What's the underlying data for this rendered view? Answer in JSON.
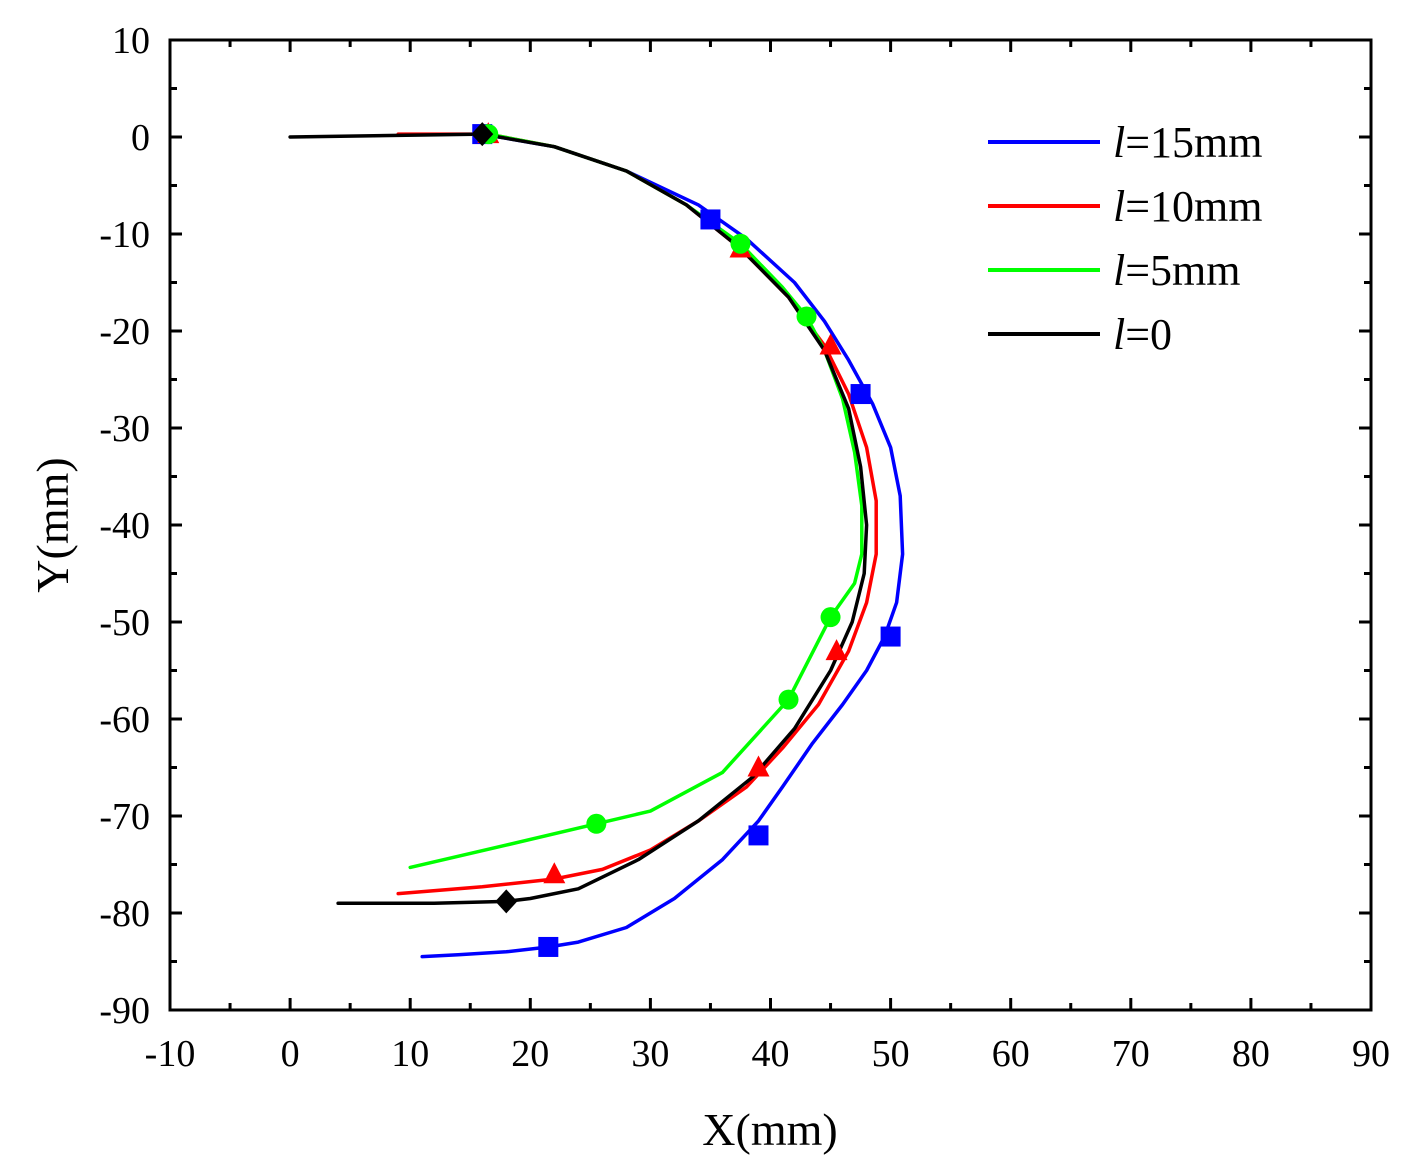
{
  "chart_data": {
    "type": "line",
    "title": "",
    "xlabel": "X(mm)",
    "ylabel": "Y(mm)",
    "xlim": [
      -10,
      90
    ],
    "ylim": [
      -90,
      10
    ],
    "xticks": [
      -10,
      0,
      10,
      20,
      30,
      40,
      50,
      60,
      70,
      80,
      90
    ],
    "yticks": [
      10,
      0,
      -10,
      -20,
      -30,
      -40,
      -50,
      -60,
      -70,
      -80,
      -90
    ],
    "xtick_labels": [
      "-10",
      "0",
      "10",
      "20",
      "30",
      "40",
      "50",
      "60",
      "70",
      "80",
      "90"
    ],
    "ytick_labels": [
      "10",
      "0",
      "-10",
      "-20",
      "-30",
      "-40",
      "-50",
      "-60",
      "-70",
      "-80",
      "-90"
    ],
    "legend_position": "top-right",
    "series": [
      {
        "name": "l=15mm",
        "legend_italic": "l",
        "legend_rest": "=15mm",
        "color": "#0000ff",
        "marker": "square",
        "x": [
          16,
          22,
          28,
          34,
          38,
          42,
          44.5,
          46.5,
          48.5,
          50,
          50.8,
          51,
          50.5,
          49.5,
          48,
          46,
          43.5,
          41,
          39,
          36,
          32,
          28,
          24,
          21.5,
          18,
          14,
          11
        ],
        "y": [
          0.3,
          -1,
          -3.5,
          -7,
          -10.5,
          -15,
          -19,
          -23,
          -27.5,
          -32,
          -37,
          -43,
          -48,
          -51.5,
          -55,
          -58.5,
          -62.5,
          -67,
          -70.5,
          -74.5,
          -78.5,
          -81.5,
          -83,
          -83.5,
          -84,
          -84.3,
          -84.5
        ],
        "marker_x": [
          16,
          35,
          47.5,
          50,
          39,
          21.5
        ],
        "marker_y": [
          0.3,
          -8.5,
          -26.5,
          -51.5,
          -72,
          -83.5
        ]
      },
      {
        "name": "l=10mm",
        "legend_italic": "l",
        "legend_rest": "=10mm",
        "color": "#ff0000",
        "marker": "triangle",
        "x": [
          9,
          16.5,
          22,
          28,
          33,
          37.5,
          41.5,
          44.5,
          46.5,
          48,
          48.8,
          48.8,
          48,
          46.5,
          44,
          41,
          38,
          34,
          30,
          26,
          22,
          16,
          9
        ],
        "y": [
          0.3,
          0.3,
          -1,
          -3.5,
          -7,
          -11.5,
          -16.5,
          -21.5,
          -26.5,
          -32,
          -37.5,
          -43,
          -48,
          -53,
          -58.5,
          -63,
          -67,
          -70.5,
          -73.5,
          -75.5,
          -76.5,
          -77.3,
          -78
        ],
        "marker_x": [
          16.5,
          37.5,
          45,
          45.5,
          39,
          22
        ],
        "marker_y": [
          0.3,
          -11.5,
          -21.5,
          -53,
          -65,
          -76
        ]
      },
      {
        "name": "l=5mm",
        "legend_italic": "l",
        "legend_rest": "=5mm",
        "color": "#00ff00",
        "marker": "circle",
        "x": [
          16.5,
          22,
          28,
          33,
          37.5,
          41,
          43,
          44.5,
          46,
          47,
          47.6,
          47.6,
          47,
          45,
          41.5,
          36,
          30,
          25.5,
          18,
          10
        ],
        "y": [
          0.3,
          -1,
          -3.5,
          -7,
          -11,
          -15.5,
          -18.5,
          -22,
          -27,
          -32.5,
          -38,
          -43,
          -46,
          -49.5,
          -58,
          -65.5,
          -69.5,
          -70.8,
          -73,
          -75.3
        ],
        "marker_x": [
          16.5,
          37.5,
          43,
          45,
          41.5,
          25.5
        ],
        "marker_y": [
          0.3,
          -11,
          -18.5,
          -49.5,
          -58,
          -70.8
        ]
      },
      {
        "name": "l=0",
        "legend_italic": "l",
        "legend_rest": "=0",
        "color": "#000000",
        "marker": "diamond",
        "x": [
          0,
          16,
          22,
          28,
          33,
          37.5,
          41.5,
          44.5,
          46.5,
          47.5,
          48,
          47.8,
          46.8,
          45,
          42,
          38.5,
          34,
          29,
          24,
          20,
          18,
          12,
          4
        ],
        "y": [
          0,
          0.3,
          -1,
          -3.5,
          -7,
          -11.5,
          -16.5,
          -22,
          -28,
          -34,
          -40,
          -45,
          -50,
          -55,
          -61,
          -66,
          -70.5,
          -74.5,
          -77.5,
          -78.5,
          -78.8,
          -79,
          -79
        ],
        "marker_x": [
          16,
          18
        ],
        "marker_y": [
          0.3,
          -78.8
        ]
      }
    ]
  }
}
